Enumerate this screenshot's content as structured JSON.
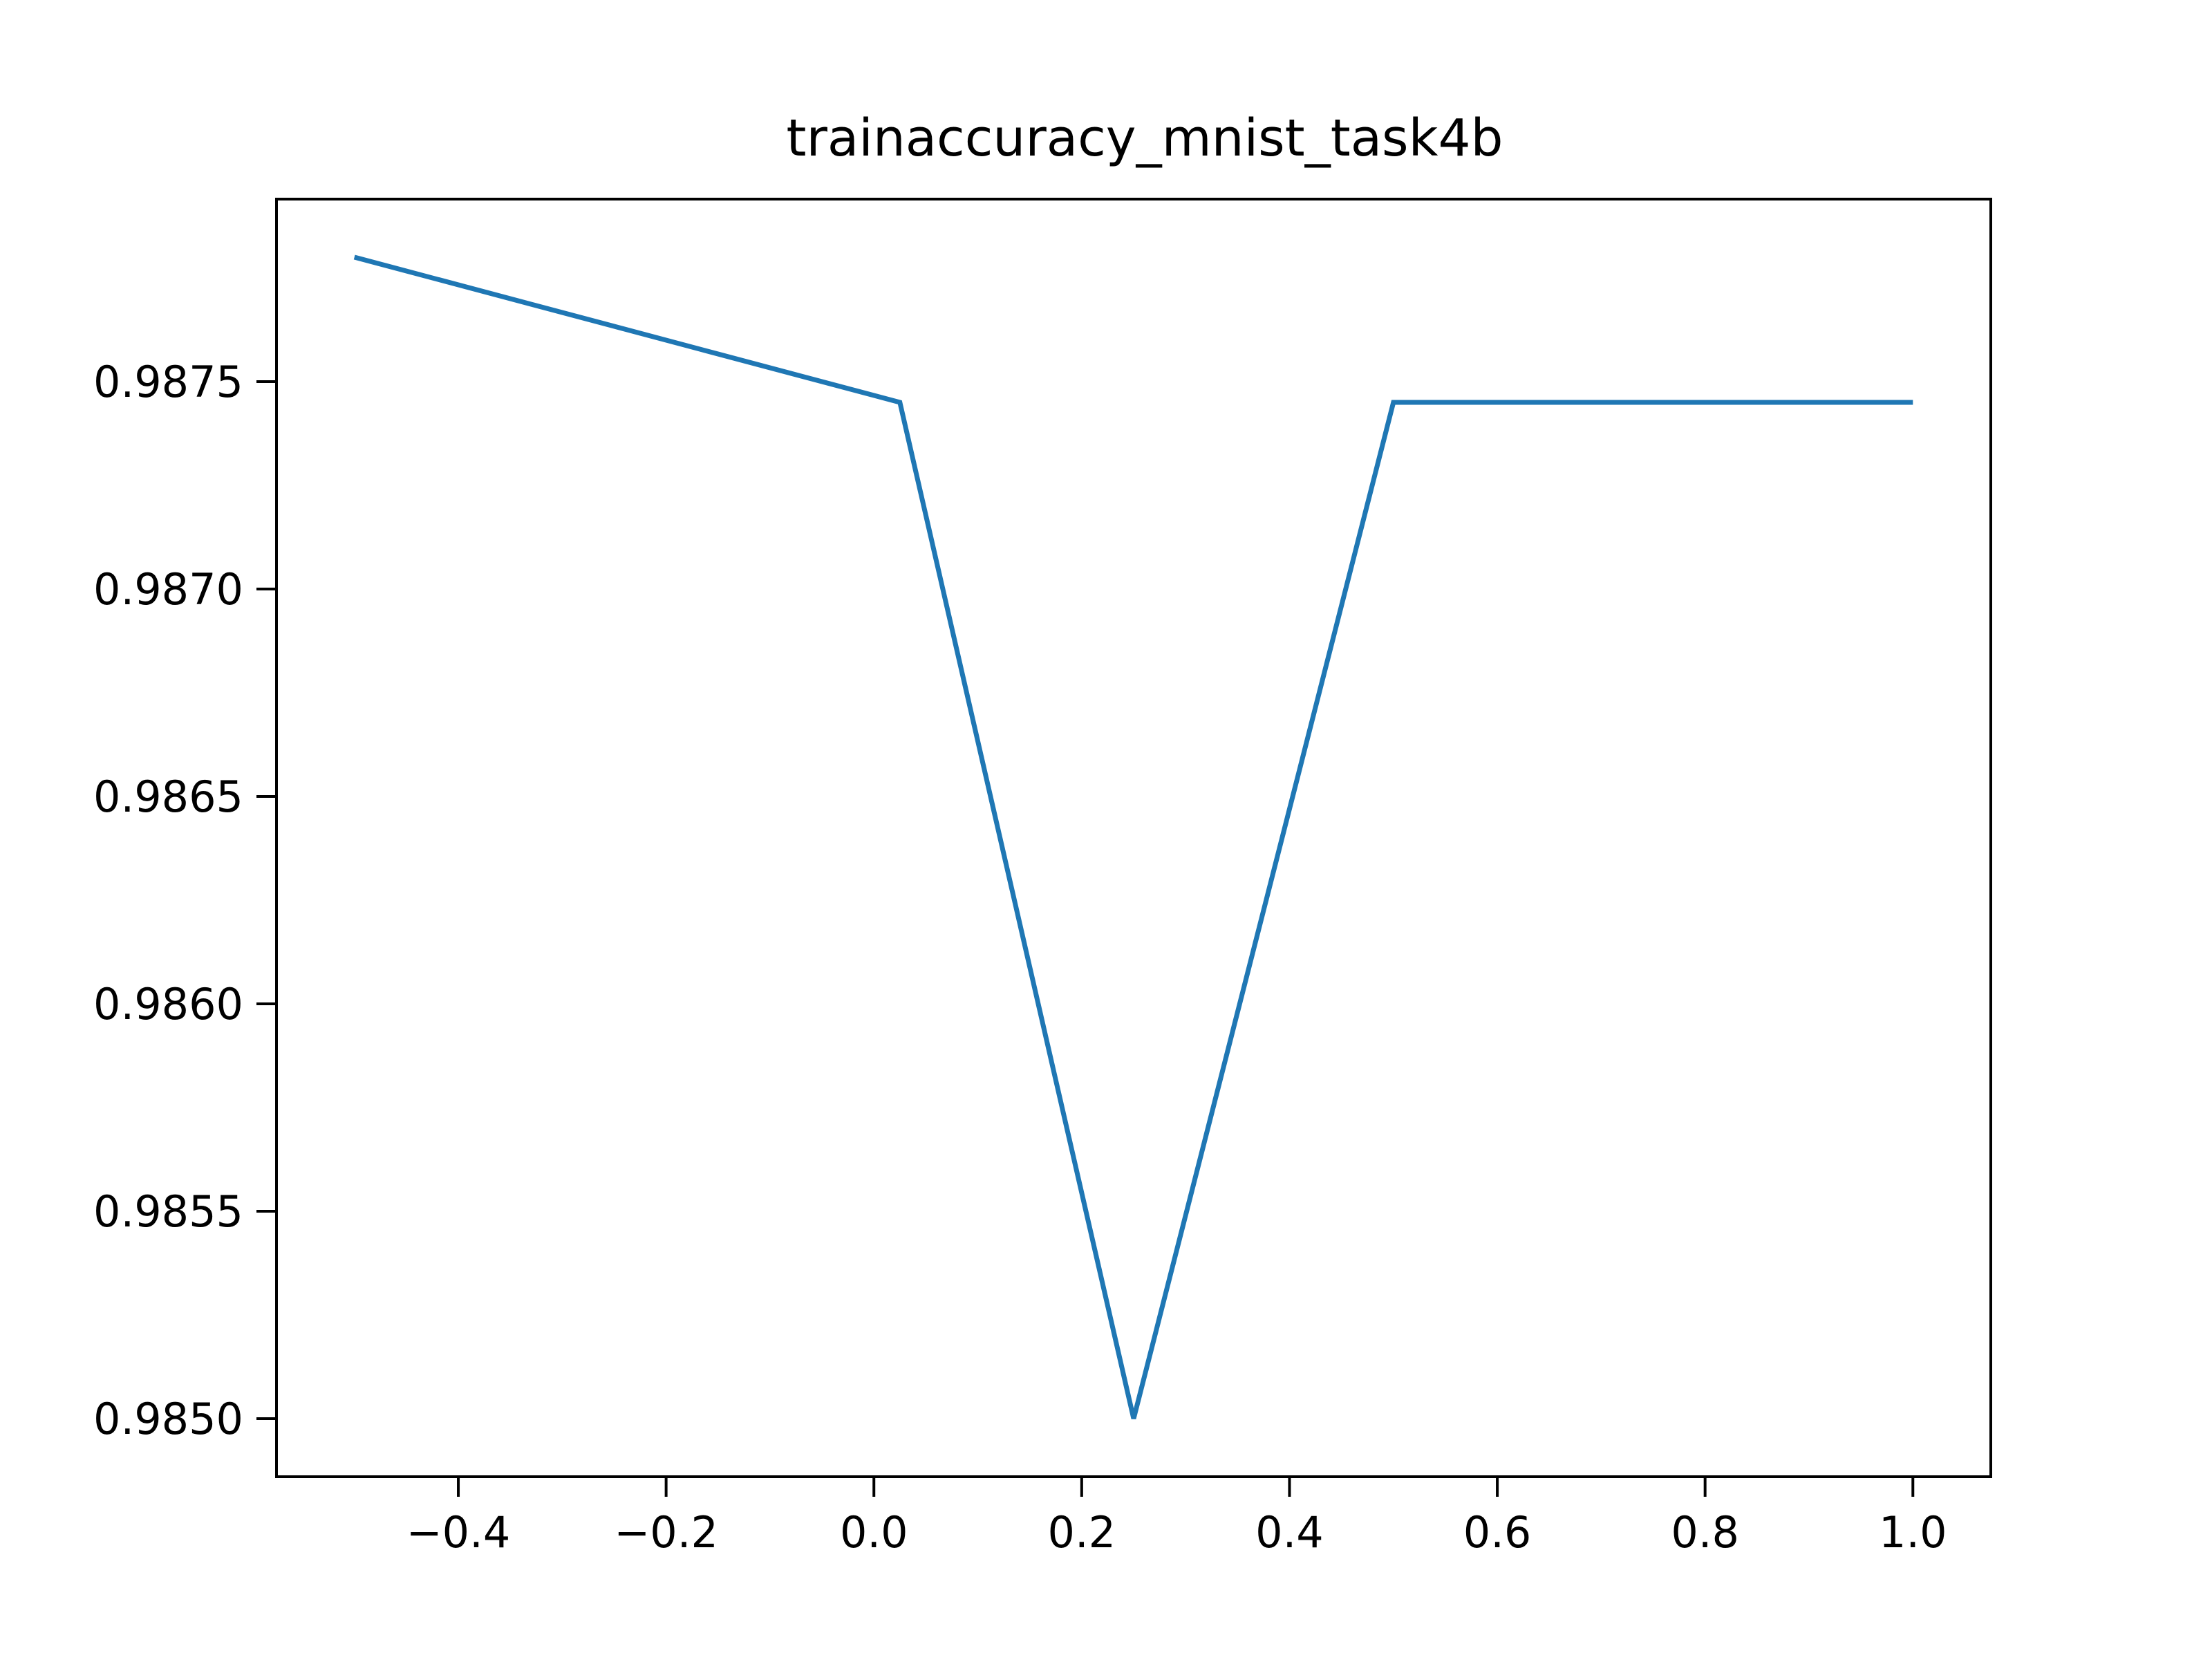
{
  "chart_data": {
    "type": "line",
    "title": "trainaccuracy_mnist_task4b",
    "xlabel": "",
    "ylabel": "",
    "xlim": [
      -0.575,
      1.075
    ],
    "ylim": [
      0.98486,
      0.98794
    ],
    "x_ticks": [
      -0.4,
      -0.2,
      0.0,
      0.2,
      0.4,
      0.6,
      0.8,
      1.0
    ],
    "x_tick_labels": [
      "−0.4",
      "−0.2",
      "0.0",
      "0.2",
      "0.4",
      "0.6",
      "0.8",
      "1.0"
    ],
    "y_ticks": [
      0.985,
      0.9855,
      0.986,
      0.9865,
      0.987,
      0.9875
    ],
    "y_tick_labels": [
      "0.9850",
      "0.9855",
      "0.9860",
      "0.9865",
      "0.9870",
      "0.9875"
    ],
    "grid": false,
    "series": [
      {
        "color": "#1f77b4",
        "x": [
          -0.5,
          0.025,
          0.25,
          0.5,
          1.0
        ],
        "y": [
          0.9878,
          0.98745,
          0.985,
          0.98745,
          0.98745
        ]
      }
    ]
  }
}
